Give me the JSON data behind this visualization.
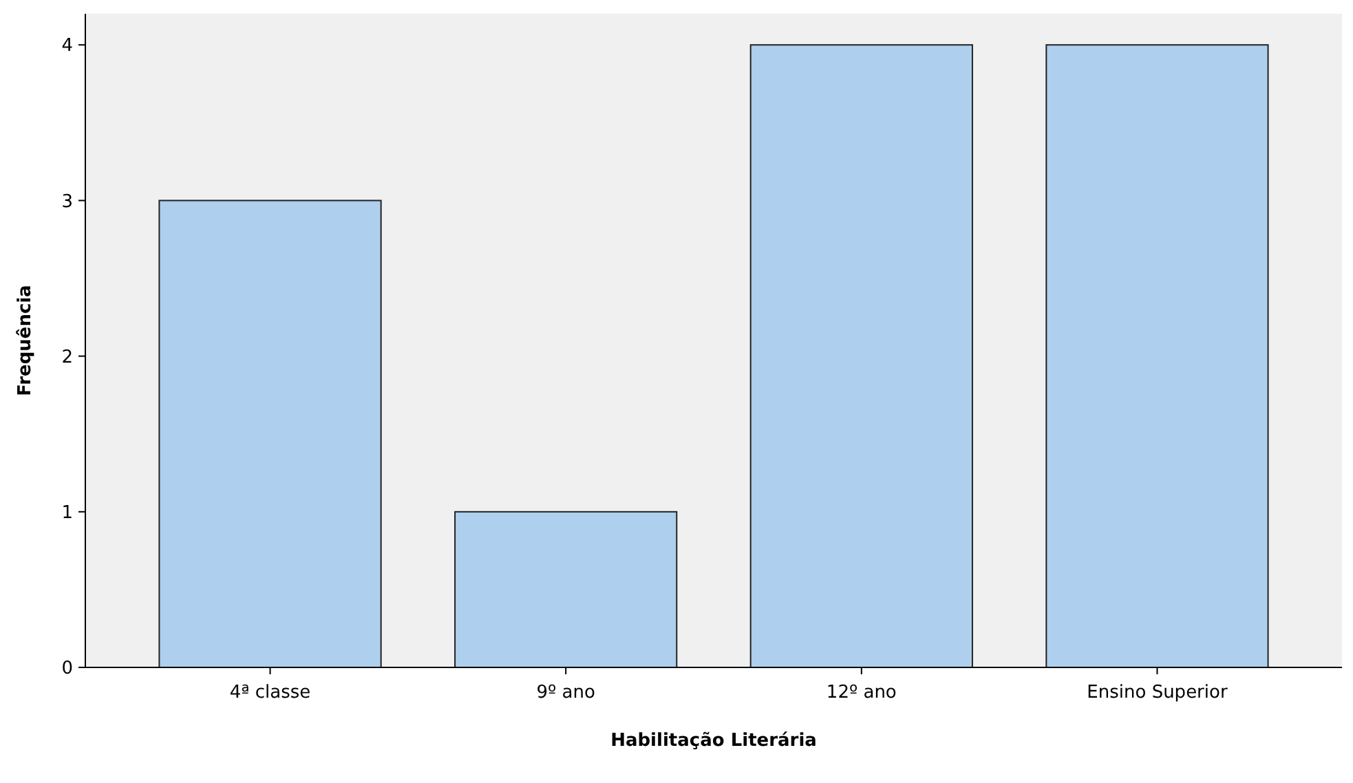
{
  "chart_data": {
    "type": "bar",
    "xlabel": "Habilitação Literária",
    "ylabel": "Frequência",
    "categories": [
      "4ª classe",
      "9º ano",
      "12º ano",
      "Ensino Superior"
    ],
    "values": [
      3,
      1,
      4,
      4
    ],
    "color": "#aecfed",
    "ylim": [
      0,
      4.2
    ],
    "yticks": [
      0,
      1,
      2,
      3,
      4
    ],
    "grid": false
  }
}
